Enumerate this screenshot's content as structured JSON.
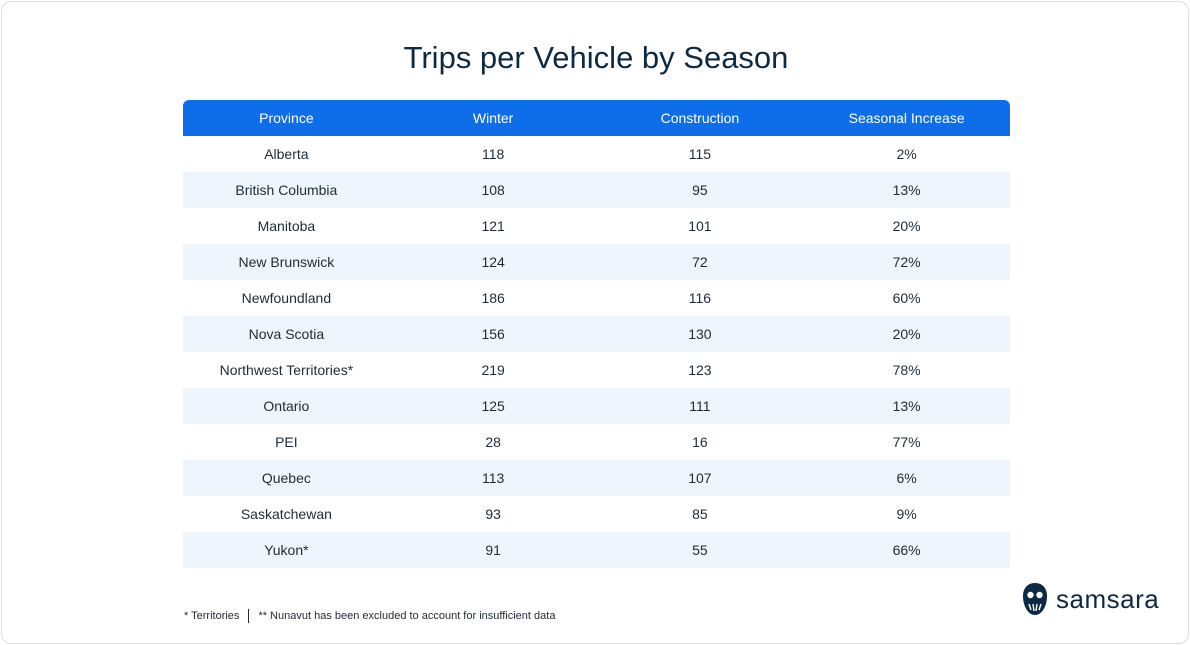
{
  "header": {
    "title": "Trips per Vehicle by Season"
  },
  "table": {
    "columns": [
      "Province",
      "Winter",
      "Construction",
      "Seasonal Increase"
    ],
    "rows": [
      [
        "Alberta",
        118,
        115,
        "2%"
      ],
      [
        "British Columbia",
        108,
        95,
        "13%"
      ],
      [
        "Manitoba",
        121,
        101,
        "20%"
      ],
      [
        "New Brunswick",
        124,
        72,
        "72%"
      ],
      [
        "Newfoundland",
        186,
        116,
        "60%"
      ],
      [
        "Nova Scotia",
        156,
        130,
        "20%"
      ],
      [
        "Northwest Territories*",
        219,
        123,
        "78%"
      ],
      [
        "Ontario",
        125,
        111,
        "13%"
      ],
      [
        "PEI",
        28,
        16,
        "77%"
      ],
      [
        "Quebec",
        113,
        107,
        "6%"
      ],
      [
        "Saskatchewan",
        93,
        85,
        "9%"
      ],
      [
        "Yukon*",
        91,
        55,
        "66%"
      ]
    ]
  },
  "footnotes": [
    "* Territories",
    "** Nunavut has been excluded to account for insufficient data"
  ],
  "logo": "samsara"
}
